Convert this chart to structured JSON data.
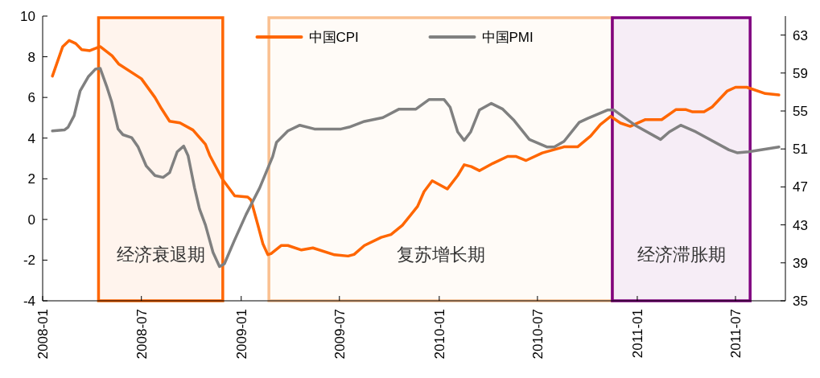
{
  "chart_data": {
    "type": "line",
    "legend": "top",
    "grid": false,
    "xlim": [
      "2008-01",
      "2011-10"
    ],
    "xticks": [
      "2008-01",
      "2008-07",
      "2009-01",
      "2009-07",
      "2010-01",
      "2010-07",
      "2011-01",
      "2011-07"
    ],
    "ylim": [
      -4,
      10
    ],
    "yticks": [
      -4,
      -2,
      0,
      2,
      4,
      6,
      8,
      10
    ],
    "y2lim": [
      35,
      65
    ],
    "y2ticks": [
      35,
      39,
      43,
      47,
      51,
      55,
      59,
      63
    ],
    "series": [
      {
        "name": "中国CPI",
        "color": "#ff6600",
        "x": [
          "2008-01-19",
          "2008-02-07",
          "2008-02-19",
          "2008-03-02",
          "2008-03-13",
          "2008-03-28",
          "2008-04-16",
          "2008-05-08",
          "2008-05-20",
          "2008-07-01",
          "2008-07-26",
          "2008-08-07",
          "2008-08-22",
          "2008-09-10",
          "2008-10-04",
          "2008-10-27",
          "2008-11-04",
          "2008-11-28",
          "2008-12-20",
          "2009-01-13",
          "2009-01-19",
          "2009-02-01",
          "2009-02-10",
          "2009-02-19",
          "2009-02-25",
          "2009-03-16",
          "2009-03-28",
          "2009-04-22",
          "2009-05-13",
          "2009-06-22",
          "2009-07-17",
          "2009-07-28",
          "2009-08-16",
          "2009-09-16",
          "2009-10-04",
          "2009-10-25",
          "2009-11-22",
          "2009-12-04",
          "2009-12-19",
          "2010-01-16",
          "2010-02-04",
          "2010-02-16",
          "2010-03-01",
          "2010-03-16",
          "2010-04-10",
          "2010-05-07",
          "2010-05-22",
          "2010-06-10",
          "2010-07-10",
          "2010-08-19",
          "2010-09-13",
          "2010-10-07",
          "2010-10-25",
          "2010-11-13",
          "2010-12-01",
          "2010-12-19",
          "2011-01-16",
          "2011-02-15",
          "2011-03-13",
          "2011-04-01",
          "2011-04-13",
          "2011-05-04",
          "2011-05-19",
          "2011-06-16",
          "2011-07-01",
          "2011-07-22",
          "2011-08-25",
          "2011-09-19"
        ],
        "values": [
          7.05,
          8.5,
          8.8,
          8.65,
          8.35,
          8.3,
          8.5,
          8.05,
          7.65,
          6.92,
          6.0,
          5.45,
          4.83,
          4.75,
          4.4,
          3.7,
          3.15,
          1.95,
          1.16,
          1.1,
          0.96,
          -0.3,
          -1.2,
          -1.73,
          -1.68,
          -1.28,
          -1.28,
          -1.5,
          -1.4,
          -1.74,
          -1.8,
          -1.72,
          -1.28,
          -0.88,
          -0.74,
          -0.29,
          0.64,
          1.37,
          1.9,
          1.5,
          2.16,
          2.69,
          2.6,
          2.4,
          2.76,
          3.1,
          3.1,
          2.9,
          3.27,
          3.57,
          3.57,
          4.1,
          4.67,
          5.07,
          4.74,
          4.58,
          4.91,
          4.91,
          5.4,
          5.4,
          5.29,
          5.29,
          5.53,
          6.32,
          6.5,
          6.5,
          6.19,
          6.12
        ]
      },
      {
        "name": "中国PMI",
        "color": "#808080",
        "axis": "y2",
        "x": [
          "2008-01-19",
          "2008-02-10",
          "2008-02-17",
          "2008-02-28",
          "2008-03-10",
          "2008-03-25",
          "2008-04-07",
          "2008-04-16",
          "2008-04-28",
          "2008-05-07",
          "2008-05-19",
          "2008-05-28",
          "2008-06-13",
          "2008-06-25",
          "2008-07-10",
          "2008-07-26",
          "2008-08-10",
          "2008-08-22",
          "2008-09-05",
          "2008-09-17",
          "2008-09-25",
          "2008-10-07",
          "2008-10-16",
          "2008-10-27",
          "2008-11-10",
          "2008-11-22",
          "2008-12-01",
          "2008-12-19",
          "2009-01-10",
          "2009-02-04",
          "2009-02-28",
          "2009-03-07",
          "2009-03-28",
          "2009-04-19",
          "2009-05-16",
          "2009-07-04",
          "2009-07-19",
          "2009-08-16",
          "2009-09-19",
          "2009-10-19",
          "2009-11-19",
          "2009-12-13",
          "2010-01-10",
          "2010-01-21",
          "2010-02-04",
          "2010-02-16",
          "2010-02-28",
          "2010-03-16",
          "2010-04-07",
          "2010-04-28",
          "2010-05-19",
          "2010-06-16",
          "2010-07-19",
          "2010-08-01",
          "2010-08-19",
          "2010-09-16",
          "2010-10-01",
          "2010-11-07",
          "2010-11-19",
          "2010-12-28",
          "2011-02-13",
          "2011-03-01",
          "2011-03-22",
          "2011-04-19",
          "2011-06-19",
          "2011-07-04",
          "2011-07-25",
          "2011-09-19"
        ],
        "values": [
          52.9,
          53.0,
          53.3,
          54.5,
          57.1,
          58.6,
          59.4,
          59.5,
          57.6,
          56.0,
          53.1,
          52.5,
          52.2,
          51.2,
          49.2,
          48.2,
          48.0,
          48.5,
          50.7,
          51.3,
          50.3,
          46.9,
          44.7,
          43.0,
          40.1,
          38.6,
          38.9,
          41.3,
          44.1,
          46.9,
          50.2,
          51.7,
          52.9,
          53.5,
          53.1,
          53.1,
          53.3,
          53.9,
          54.3,
          55.2,
          55.2,
          56.2,
          56.2,
          55.4,
          52.8,
          51.9,
          52.8,
          55.1,
          55.8,
          55.2,
          54.0,
          52.0,
          51.2,
          51.2,
          51.8,
          53.8,
          54.2,
          55.1,
          55.1,
          53.5,
          52.0,
          52.8,
          53.5,
          52.8,
          50.9,
          50.6,
          50.7,
          51.2
        ]
      }
    ],
    "bands": [
      {
        "axis": "x",
        "from": "2008-04-13",
        "to": "2008-11-28",
        "label": "经济衰退期",
        "color": "#ff6600"
      },
      {
        "axis": "x",
        "from": "2009-02-21",
        "to": "2010-11-16",
        "label": "复苏增长期",
        "color": "#fac090"
      },
      {
        "axis": "x",
        "from": "2010-11-16",
        "to": "2011-07-28",
        "label": "经济滞胀期",
        "color": "#800080"
      }
    ]
  }
}
